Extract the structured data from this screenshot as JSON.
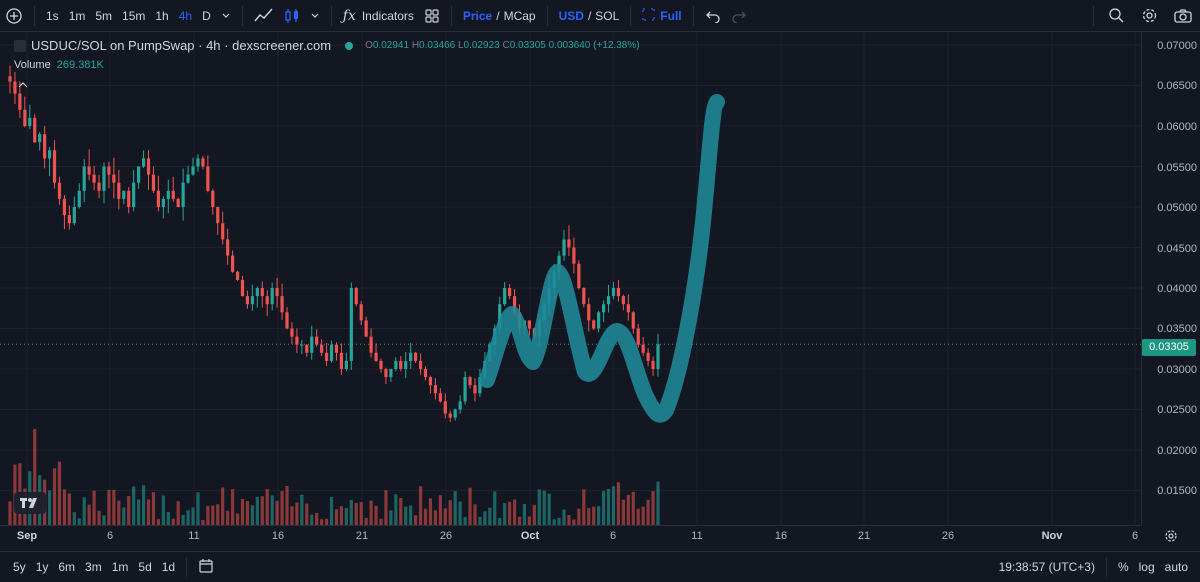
{
  "toolbar": {
    "intervals": [
      "1s",
      "1m",
      "5m",
      "15m",
      "1h",
      "4h",
      "D"
    ],
    "active_interval": "4h",
    "indicators_label": "Indicators",
    "price_label": "Price",
    "slash": "/",
    "mcap_label": "MCap",
    "usd_label": "USD",
    "sol_label": "SOL",
    "full_label": "Full"
  },
  "legend": {
    "symbol": "USDUC/SOL on PumpSwap · 4h · dexscreener.com",
    "o_label": "O",
    "o": "0.02941",
    "h_label": "H",
    "h": "0.03466",
    "l_label": "L",
    "l": "0.02923",
    "c_label": "C",
    "c": "0.03305",
    "change": "0.003640 (+12.38%)",
    "volume_label": "Volume",
    "volume": "269.381K"
  },
  "price_scale": {
    "labels": [
      "0.07000",
      "0.06500",
      "0.06000",
      "0.05500",
      "0.05000",
      "0.04500",
      "0.04000",
      "0.03500",
      "0.03000",
      "0.02500",
      "0.02000",
      "0.01500"
    ],
    "current": "0.03305"
  },
  "time_axis": {
    "labels": [
      "Sep",
      "6",
      "11",
      "16",
      "21",
      "26",
      "Oct",
      "6",
      "11",
      "16",
      "21",
      "26",
      "Nov",
      "6"
    ]
  },
  "bottombar": {
    "ranges": [
      "5y",
      "1y",
      "6m",
      "3m",
      "1m",
      "5d",
      "1d"
    ],
    "clock": "19:38:57 (UTC+3)",
    "percent": "%",
    "log": "log",
    "auto": "auto"
  },
  "colors": {
    "up": "#26a69a",
    "down": "#ef5350",
    "drawing": "#1f8a99",
    "accent": "#2962ff"
  },
  "chart_data": {
    "type": "candlestick",
    "interval": "4h",
    "close_series": [
      0.0655,
      0.064,
      0.062,
      0.06,
      0.061,
      0.058,
      0.059,
      0.056,
      0.057,
      0.053,
      0.051,
      0.049,
      0.048,
      0.05,
      0.052,
      0.055,
      0.054,
      0.053,
      0.052,
      0.055,
      0.054,
      0.053,
      0.051,
      0.052,
      0.05,
      0.053,
      0.055,
      0.056,
      0.054,
      0.052,
      0.05,
      0.051,
      0.052,
      0.051,
      0.05,
      0.053,
      0.054,
      0.055,
      0.056,
      0.055,
      0.052,
      0.05,
      0.048,
      0.046,
      0.044,
      0.042,
      0.041,
      0.039,
      0.038,
      0.039,
      0.04,
      0.039,
      0.038,
      0.04,
      0.039,
      0.037,
      0.035,
      0.034,
      0.033,
      0.033,
      0.032,
      0.034,
      0.033,
      0.032,
      0.031,
      0.033,
      0.032,
      0.03,
      0.031,
      0.04,
      0.038,
      0.036,
      0.034,
      0.032,
      0.031,
      0.03,
      0.029,
      0.03,
      0.031,
      0.03,
      0.031,
      0.032,
      0.031,
      0.03,
      0.029,
      0.028,
      0.027,
      0.026,
      0.0245,
      0.024,
      0.025,
      0.026,
      0.029,
      0.028,
      0.027,
      0.029,
      0.031,
      0.033,
      0.035,
      0.038,
      0.04,
      0.039,
      0.037,
      0.035,
      0.036,
      0.035,
      0.034,
      0.036,
      0.038,
      0.04,
      0.042,
      0.044,
      0.046,
      0.045,
      0.043,
      0.04,
      0.038,
      0.036,
      0.035,
      0.037,
      0.038,
      0.039,
      0.04,
      0.039,
      0.038,
      0.037,
      0.035,
      0.033,
      0.032,
      0.031,
      0.03,
      0.03305
    ]
  }
}
